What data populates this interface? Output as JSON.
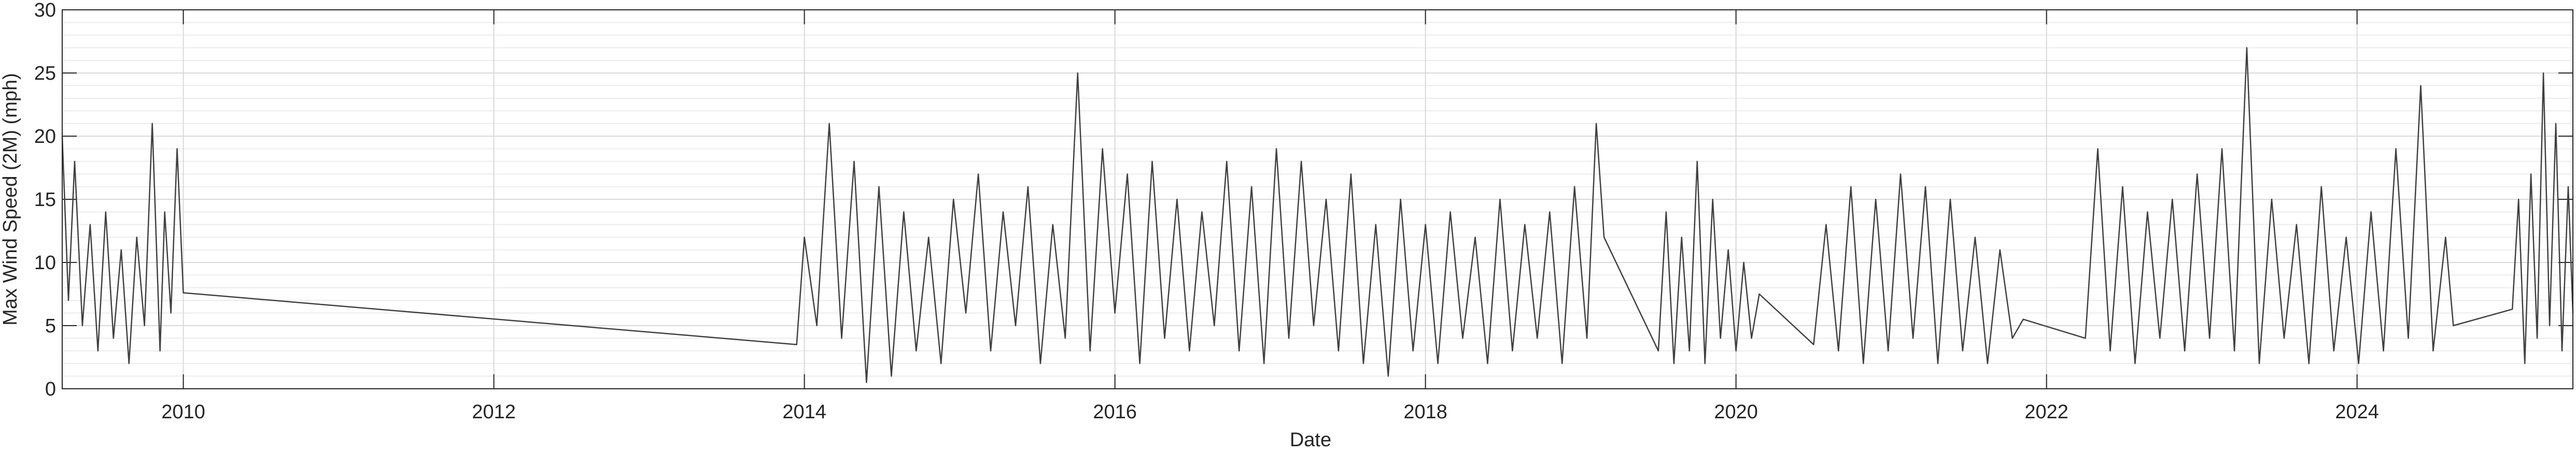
{
  "chart_data": {
    "type": "line",
    "xlabel": "Date",
    "ylabel": "Max Wind Speed (2M) (mph)",
    "color": "#404040",
    "grid": true,
    "minor_grid": true,
    "xlim": [
      2009.22,
      2025.39
    ],
    "xticks": [
      2010,
      2012,
      2014,
      2016,
      2018,
      2020,
      2022,
      2024
    ],
    "ylim": [
      0,
      30
    ],
    "yticks": [
      0,
      5,
      10,
      15,
      20,
      25,
      30
    ],
    "x": [
      2009.22,
      2009.26,
      2009.3,
      2009.35,
      2009.4,
      2009.45,
      2009.5,
      2009.55,
      2009.6,
      2009.65,
      2009.7,
      2009.75,
      2009.8,
      2009.85,
      2009.88,
      2009.92,
      2009.96,
      2010.0,
      2013.95,
      2014.0,
      2014.08,
      2014.16,
      2014.24,
      2014.32,
      2014.4,
      2014.48,
      2014.56,
      2014.64,
      2014.72,
      2014.8,
      2014.88,
      2014.96,
      2015.04,
      2015.12,
      2015.2,
      2015.28,
      2015.36,
      2015.44,
      2015.52,
      2015.6,
      2015.68,
      2015.76,
      2015.84,
      2015.92,
      2016.0,
      2016.08,
      2016.16,
      2016.24,
      2016.32,
      2016.4,
      2016.48,
      2016.56,
      2016.64,
      2016.72,
      2016.8,
      2016.88,
      2016.96,
      2017.04,
      2017.12,
      2017.2,
      2017.28,
      2017.36,
      2017.44,
      2017.52,
      2017.6,
      2017.68,
      2017.76,
      2017.84,
      2017.92,
      2018.0,
      2018.08,
      2018.16,
      2018.24,
      2018.32,
      2018.4,
      2018.48,
      2018.56,
      2018.64,
      2018.72,
      2018.8,
      2018.88,
      2018.96,
      2019.04,
      2019.1,
      2019.15,
      2019.5,
      2019.55,
      2019.6,
      2019.65,
      2019.7,
      2019.75,
      2019.8,
      2019.85,
      2019.9,
      2019.95,
      2020.0,
      2020.05,
      2020.1,
      2020.15,
      2020.5,
      2020.58,
      2020.66,
      2020.74,
      2020.82,
      2020.9,
      2020.98,
      2021.06,
      2021.14,
      2021.22,
      2021.3,
      2021.38,
      2021.46,
      2021.54,
      2021.62,
      2021.7,
      2021.78,
      2021.85,
      2022.25,
      2022.33,
      2022.41,
      2022.49,
      2022.57,
      2022.65,
      2022.73,
      2022.81,
      2022.89,
      2022.97,
      2023.05,
      2023.13,
      2023.21,
      2023.29,
      2023.37,
      2023.45,
      2023.53,
      2023.61,
      2023.69,
      2023.77,
      2023.85,
      2023.93,
      2024.01,
      2024.09,
      2024.17,
      2024.25,
      2024.33,
      2024.41,
      2024.49,
      2024.57,
      2024.62,
      2025.0,
      2025.04,
      2025.08,
      2025.12,
      2025.16,
      2025.2,
      2025.24,
      2025.28,
      2025.32,
      2025.36,
      2025.39
    ],
    "values": [
      20,
      7,
      18,
      5,
      13,
      3,
      14,
      4,
      11,
      2,
      12,
      5,
      21,
      3,
      14,
      6,
      19,
      7.6,
      3.5,
      12,
      5,
      21,
      4,
      18,
      0.5,
      16,
      1,
      14,
      3,
      12,
      2,
      15,
      6,
      17,
      3,
      14,
      5,
      16,
      2,
      13,
      4,
      25,
      3,
      19,
      6,
      17,
      2,
      18,
      4,
      15,
      3,
      14,
      5,
      18,
      3,
      16,
      2,
      19,
      4,
      18,
      5,
      15,
      3,
      17,
      2,
      13,
      1,
      15,
      3,
      13,
      2,
      14,
      4,
      12,
      2,
      15,
      3,
      13,
      4,
      14,
      2,
      16,
      4,
      21,
      12,
      3,
      14,
      2,
      12,
      3,
      18,
      2,
      15,
      4,
      11,
      3,
      10,
      4,
      7.5,
      3.5,
      13,
      3,
      16,
      2,
      15,
      3,
      17,
      4,
      16,
      2,
      15,
      3,
      12,
      2,
      11,
      4,
      5.5,
      4,
      19,
      3,
      16,
      2,
      14,
      4,
      15,
      3,
      17,
      4,
      19,
      3,
      27,
      2,
      15,
      4,
      13,
      2,
      16,
      3,
      12,
      2,
      14,
      3,
      19,
      4,
      24,
      3,
      12,
      5,
      6.3,
      15,
      2,
      17,
      4,
      25,
      5,
      21,
      3,
      16,
      6
    ]
  }
}
